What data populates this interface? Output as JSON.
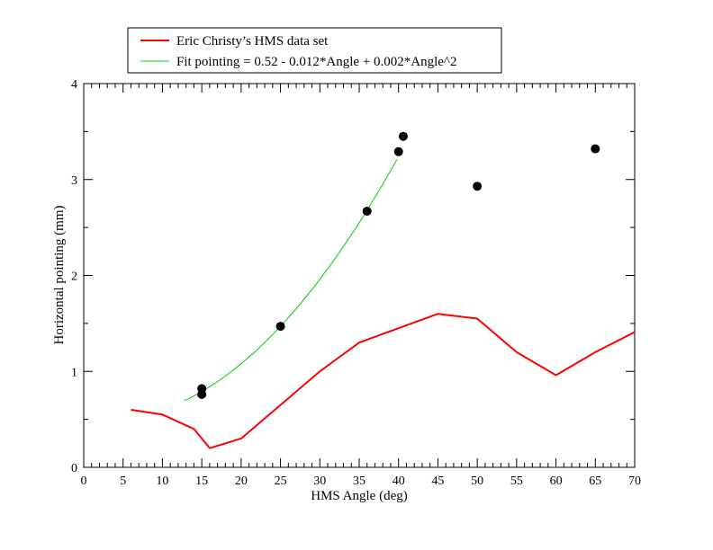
{
  "chart_data": {
    "type": "line",
    "xlabel": "HMS Angle (deg)",
    "ylabel": "Horizontal pointing (mm)",
    "xlim": [
      0,
      70
    ],
    "ylim": [
      0,
      4
    ],
    "x_ticks": [
      "0",
      "5",
      "10",
      "15",
      "20",
      "25",
      "30",
      "35",
      "40",
      "45",
      "50",
      "55",
      "60",
      "65",
      "70"
    ],
    "y_ticks": [
      "0",
      "1",
      "2",
      "3",
      "4"
    ],
    "grid": false,
    "legend_position": "top-left-outside",
    "series": [
      {
        "name": "Eric Christy’s HMS data set",
        "kind": "line",
        "color": "#ff0000",
        "x": [
          6,
          10,
          14,
          16,
          20,
          25,
          30,
          35,
          40,
          45,
          50,
          55,
          60,
          65,
          70
        ],
        "y": [
          0.6,
          0.55,
          0.4,
          0.2,
          0.3,
          0.65,
          1.0,
          1.3,
          1.45,
          1.6,
          1.55,
          1.2,
          0.96,
          1.2,
          1.41
        ]
      },
      {
        "name": "Fit pointing = 0.52 - 0.012*Angle + 0.002*Angle^2",
        "kind": "fit-curve",
        "color": "#00cc00",
        "x_range": [
          12.8,
          40
        ],
        "coefficients": [
          0.52,
          -0.012,
          0.002
        ]
      },
      {
        "kind": "scatter",
        "color": "#000000",
        "x": [
          15,
          15,
          25,
          36,
          40,
          40.6,
          50,
          65
        ],
        "y": [
          0.82,
          0.76,
          1.47,
          2.67,
          3.29,
          3.45,
          2.93,
          3.32
        ]
      }
    ]
  }
}
